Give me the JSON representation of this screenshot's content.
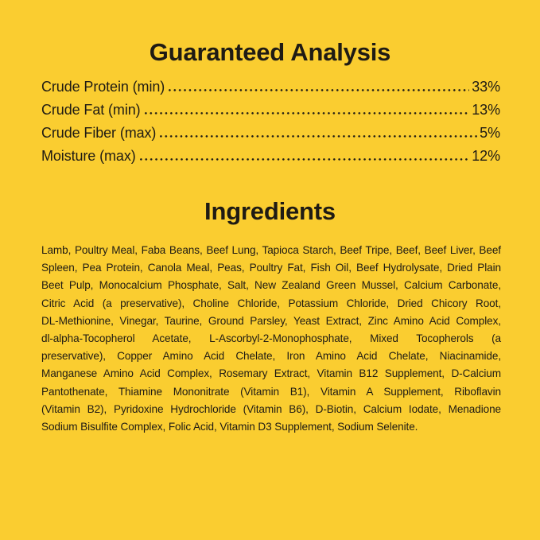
{
  "colors": {
    "background": "#FACD30",
    "text": "#1F1B14"
  },
  "guaranteed_analysis": {
    "title": "Guaranteed Analysis",
    "rows": [
      {
        "label": "Crude Protein (min)",
        "value": "33%"
      },
      {
        "label": "Crude Fat (min)",
        "value": "13%"
      },
      {
        "label": "Crude Fiber (max)",
        "value": "5%"
      },
      {
        "label": "Moisture (max)",
        "value": "12%"
      }
    ]
  },
  "ingredients": {
    "title": "Ingredients",
    "lines": [
      "Lamb, Poultry Meal, Faba Beans, Beef Lung, Tapioca Starch, Beef Tripe, Beef, Beef Liver, Beef",
      "Spleen, Pea Protein, Canola Meal, Peas, Poultry Fat, Fish Oil, Beef Hydrolysate, Dried Plain",
      "Beet Pulp, Monocalcium Phosphate, Salt, New Zealand Green Mussel, Calcium Carbonate,",
      "Citric Acid (a preservative), Choline Chloride, Potassium Chloride, Dried Chicory Root,",
      "DL-Methionine, Vinegar, Taurine, Ground Parsley, Yeast Extract, Zinc Amino Acid Complex,",
      "dl-alpha-Tocopherol Acetate, L-Ascorbyl-2-Monophosphate, Mixed Tocopherols (a",
      "preservative), Copper Amino Acid Chelate, Iron Amino Acid Chelate, Niacinamide,",
      "Manganese Amino Acid Complex, Rosemary Extract, Vitamin B12 Supplement, D-Calcium",
      "Pantothenate, Thiamine Mononitrate (Vitamin B1), Vitamin A Supplement, Riboflavin",
      "(Vitamin B2), Pyridoxine Hydrochloride (Vitamin B6), D-Biotin, Calcium Iodate, Menadione",
      "Sodium Bisulfite Complex, Folic Acid, Vitamin D3 Supplement, Sodium Selenite."
    ]
  }
}
